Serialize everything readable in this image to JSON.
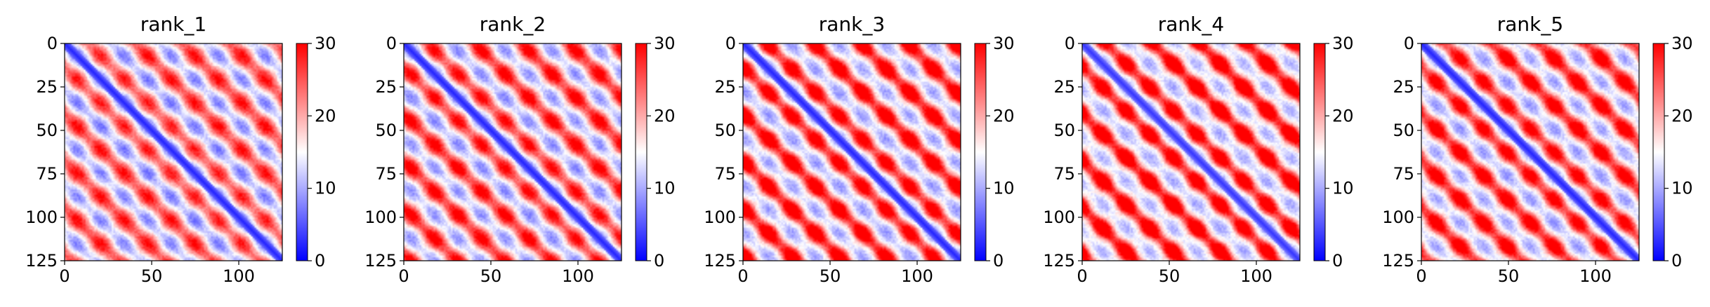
{
  "chart_data": [
    {
      "type": "heatmap",
      "title": "rank_1",
      "xticks": [
        0,
        50,
        100
      ],
      "yticks": [
        0,
        25,
        50,
        75,
        100,
        125
      ],
      "xlim": [
        0,
        125
      ],
      "ylim": [
        0,
        125
      ],
      "colorbar": {
        "cmap": "bwr",
        "range": [
          0,
          30
        ],
        "ticks": [
          0,
          10,
          20,
          30
        ]
      },
      "pattern": {
        "diagonal_value": 2,
        "block_period": 27,
        "block_phase": 0,
        "red_intensity": 0.55,
        "blue_intensity": 0.55
      }
    },
    {
      "type": "heatmap",
      "title": "rank_2",
      "xticks": [
        0,
        50,
        100
      ],
      "yticks": [
        0,
        25,
        50,
        75,
        100,
        125
      ],
      "xlim": [
        0,
        125
      ],
      "ylim": [
        0,
        125
      ],
      "colorbar": {
        "cmap": "bwr",
        "range": [
          0,
          30
        ],
        "ticks": [
          0,
          10,
          20,
          30
        ]
      },
      "pattern": {
        "diagonal_value": 2,
        "block_period": 27,
        "block_phase": 3,
        "red_intensity": 0.65,
        "blue_intensity": 0.5
      }
    },
    {
      "type": "heatmap",
      "title": "rank_3",
      "xticks": [
        0,
        50,
        100
      ],
      "yticks": [
        0,
        25,
        50,
        75,
        100,
        125
      ],
      "xlim": [
        0,
        125
      ],
      "ylim": [
        0,
        125
      ],
      "colorbar": {
        "cmap": "bwr",
        "range": [
          0,
          30
        ],
        "ticks": [
          0,
          10,
          20,
          30
        ]
      },
      "pattern": {
        "diagonal_value": 2,
        "block_period": 27,
        "block_phase": 6,
        "red_intensity": 0.8,
        "blue_intensity": 0.45
      }
    },
    {
      "type": "heatmap",
      "title": "rank_4",
      "xticks": [
        0,
        50,
        100
      ],
      "yticks": [
        0,
        25,
        50,
        75,
        100,
        125
      ],
      "xlim": [
        0,
        125
      ],
      "ylim": [
        0,
        125
      ],
      "colorbar": {
        "cmap": "bwr",
        "range": [
          0,
          30
        ],
        "ticks": [
          0,
          10,
          20,
          30
        ]
      },
      "pattern": {
        "diagonal_value": 3,
        "block_period": 27,
        "block_phase": 9,
        "red_intensity": 0.85,
        "blue_intensity": 0.4
      }
    },
    {
      "type": "heatmap",
      "title": "rank_5",
      "xticks": [
        0,
        50,
        100
      ],
      "yticks": [
        0,
        25,
        50,
        75,
        100,
        125
      ],
      "xlim": [
        0,
        125
      ],
      "ylim": [
        0,
        125
      ],
      "colorbar": {
        "cmap": "bwr",
        "range": [
          0,
          30
        ],
        "ticks": [
          0,
          10,
          20,
          30
        ]
      },
      "pattern": {
        "diagonal_value": 2,
        "block_period": 27,
        "block_phase": 12,
        "red_intensity": 0.75,
        "blue_intensity": 0.45
      }
    }
  ]
}
